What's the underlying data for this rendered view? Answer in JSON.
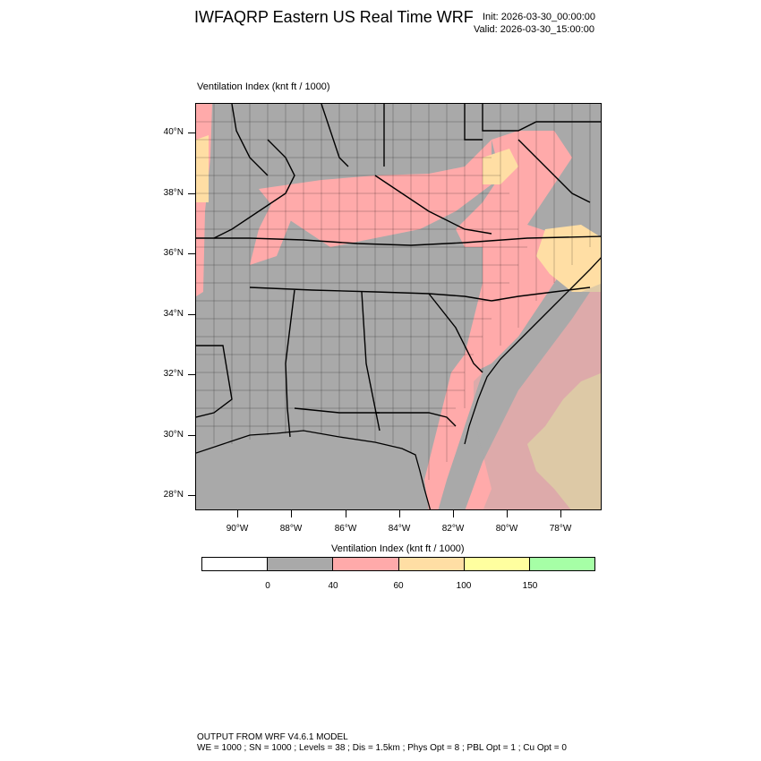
{
  "title": "IWFAQRP Eastern US Real Time WRF",
  "init": "Init: 2026-03-30_00:00:00",
  "valid": "Valid: 2026-03-30_15:00:00",
  "field_label": "Ventilation Index   (knt ft / 1000)",
  "map": {
    "lat_labels": [
      "40°N",
      "38°N",
      "36°N",
      "34°N",
      "32°N",
      "30°N",
      "28°N"
    ],
    "lon_labels": [
      "90°W",
      "88°W",
      "86°W",
      "84°W",
      "82°W",
      "80°W",
      "78°W"
    ],
    "colors": {
      "land_default": "#a9a9a9",
      "border": "#000000"
    }
  },
  "colorbar": {
    "title": "Ventilation Index  (knt ft / 1000)",
    "colors": [
      "#ffffff",
      "#a9a9a9",
      "#ffaaaa",
      "#ffdea4",
      "#ffff9f",
      "#a6ffa6"
    ],
    "labels": [
      "0",
      "40",
      "60",
      "100",
      "150"
    ]
  },
  "footer": {
    "line1": "OUTPUT FROM WRF V4.6.1 MODEL",
    "line2": "WE = 1000 ; SN = 1000 ; Levels = 38 ; Dis = 1.5km ; Phys Opt = 8 ; PBL Opt = 1 ; Cu Opt = 0"
  }
}
